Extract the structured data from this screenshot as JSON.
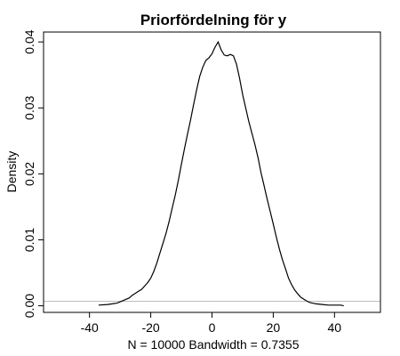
{
  "chart_data": {
    "type": "line",
    "title": "Priorfördelning för y",
    "xlabel": "N = 10000   Bandwidth = 0.7355",
    "ylabel": "Density",
    "xlim": [
      -55,
      55
    ],
    "ylim": [
      -0.001,
      0.0415
    ],
    "x_ticks": [
      -40,
      -20,
      0,
      20,
      40
    ],
    "y_ticks": [
      0.0,
      0.01,
      0.02,
      0.03,
      0.04
    ],
    "y_tick_labels": [
      "0.00",
      "0.01",
      "0.02",
      "0.03",
      "0.04"
    ],
    "grid": false,
    "zero_reference_line": true,
    "series": [
      {
        "x": [
          -37,
          -34,
          -31,
          -29,
          -27,
          -26,
          -25,
          -24,
          -23,
          -22,
          -21,
          -20,
          -19,
          -18,
          -17,
          -16,
          -15,
          -14,
          -13,
          -12,
          -11,
          -10,
          -9,
          -8,
          -7,
          -6,
          -5,
          -4,
          -3,
          -2,
          -1,
          0,
          1,
          2,
          3,
          4,
          5,
          6,
          7,
          8,
          9,
          10,
          11,
          12,
          13,
          14,
          15,
          16,
          17,
          18,
          19,
          20,
          21,
          22,
          23,
          24,
          25,
          26,
          27,
          28,
          29,
          30,
          31,
          32,
          34,
          36,
          38,
          40,
          42,
          43
        ],
        "y": [
          0.0001,
          0.0002,
          0.0004,
          0.0008,
          0.0012,
          0.0016,
          0.0019,
          0.0022,
          0.0025,
          0.003,
          0.0035,
          0.0042,
          0.0052,
          0.0065,
          0.008,
          0.0095,
          0.011,
          0.0128,
          0.0148,
          0.0168,
          0.019,
          0.0214,
          0.0238,
          0.026,
          0.0282,
          0.0305,
          0.0328,
          0.0348,
          0.0362,
          0.0372,
          0.0376,
          0.0382,
          0.0392,
          0.04,
          0.0388,
          0.038,
          0.0379,
          0.0381,
          0.0379,
          0.0366,
          0.0345,
          0.032,
          0.03,
          0.028,
          0.0262,
          0.0245,
          0.0225,
          0.0202,
          0.0182,
          0.0162,
          0.0143,
          0.0124,
          0.0104,
          0.0086,
          0.007,
          0.0056,
          0.0042,
          0.0032,
          0.0024,
          0.0018,
          0.0013,
          0.001,
          0.0007,
          0.0005,
          0.0003,
          0.0002,
          0.0001,
          0.0001,
          0.0001,
          0.0
        ]
      }
    ]
  }
}
